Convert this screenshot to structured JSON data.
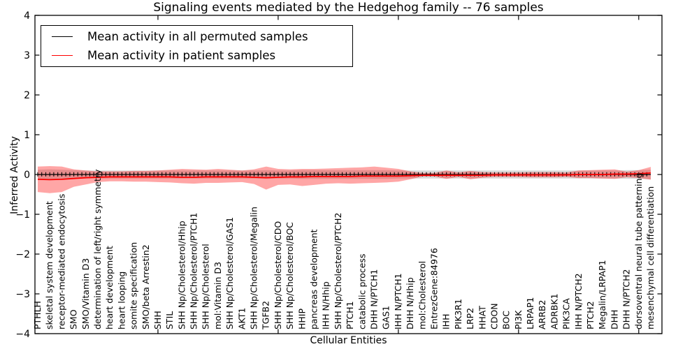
{
  "title": "Signaling events mediated by the Hedgehog family -- 76 samples",
  "axes": {
    "xlabel": "Cellular Entities",
    "ylabel": "Inferred Activity"
  },
  "legend": {
    "items": [
      {
        "label": "Mean activity in all permuted samples",
        "color": "#000000"
      },
      {
        "label": "Mean activity in patient samples",
        "color": "#ff0000"
      }
    ]
  },
  "chart_data": {
    "type": "line",
    "title": "Signaling events mediated by the Hedgehog family -- 76 samples",
    "xlabel": "Cellular Entities",
    "ylabel": "Inferred Activity",
    "ylim": [
      -4,
      4
    ],
    "yticks": [
      4,
      3,
      2,
      1,
      0,
      -1,
      -2,
      -3,
      -4
    ],
    "ytick_labels": [
      "4",
      "3",
      "2",
      "1",
      "0",
      "−1",
      "−2",
      "−3",
      "−4"
    ],
    "x_major_tick_indices": [
      10,
      20,
      30,
      40,
      50
    ],
    "legend_position": "upper left",
    "grid": false,
    "categories": [
      "PTHLH",
      "skeletal system development",
      "receptor-mediated endocytosis",
      "SMO",
      "SMO/Vitamin D3",
      "determination of left/right symmetry",
      "heart development",
      "heart looping",
      "somite specification",
      "SMO/beta Arrestin2",
      "SHH",
      "STIL",
      "SHH Np/Cholesterol/Hhip",
      "SHH Np/Cholesterol/PTCH1",
      "SHH Np/Cholesterol",
      "mol:Vitamin D3",
      "SHH Np/Cholesterol/GAS1",
      "AKT1",
      "SHH Np/Cholesterol/Megalin",
      "TGFB2",
      "SHH Np/Cholesterol/CDO",
      "SHH Np/Cholesterol/BOC",
      "HHIP",
      "pancreas development",
      "IHH N/Hhip",
      "SHH Np/Cholesterol/PTCH2",
      "PTCH1",
      "catabolic process",
      "DHH N/PTCH1",
      "GAS1",
      "IHH N/PTCH1",
      "DHH N/Hhip",
      "mol:Cholesterol",
      "EntrezGene:84976",
      "IHH",
      "PIK3R1",
      "LRP2",
      "HHAT",
      "CDON",
      "BOC",
      "PI3K",
      "LRPAP1",
      "ARRB2",
      "ADRBK1",
      "PIK3CA",
      "IHH N/PTCH2",
      "PTCH2",
      "Megalin/LRPAP1",
      "DHH",
      "DHH N/PTCH2",
      "dorsoventral neural tube patterning",
      "mesenchymal cell differentiation"
    ],
    "series": [
      {
        "name": "Mean activity in all permuted samples",
        "color": "#000000",
        "values": [
          0,
          0,
          0,
          0,
          0,
          0,
          0,
          0,
          0,
          0,
          0,
          0,
          0,
          0,
          0,
          0,
          0,
          0,
          0,
          0,
          0,
          0,
          0,
          0,
          0,
          0,
          0,
          0,
          0,
          0,
          0,
          0,
          0,
          0,
          0,
          0,
          0,
          0,
          0,
          0,
          0,
          0,
          0,
          0,
          0,
          0,
          0,
          0,
          0,
          0,
          0,
          0
        ]
      },
      {
        "name": "Mean activity in patient samples",
        "color": "#ff0000",
        "values": [
          -0.12,
          -0.13,
          -0.12,
          -0.1,
          -0.08,
          -0.07,
          -0.06,
          -0.06,
          -0.06,
          -0.06,
          -0.06,
          -0.06,
          -0.07,
          -0.07,
          -0.06,
          -0.06,
          -0.06,
          -0.06,
          -0.07,
          -0.08,
          -0.07,
          -0.06,
          -0.06,
          -0.05,
          -0.05,
          -0.05,
          -0.05,
          -0.04,
          -0.04,
          -0.04,
          -0.04,
          -0.03,
          -0.02,
          -0.02,
          -0.02,
          -0.02,
          -0.02,
          -0.02,
          -0.01,
          -0.01,
          -0.01,
          -0.01,
          -0.01,
          -0.01,
          -0.01,
          0.0,
          0.0,
          0.0,
          0.01,
          0.01,
          0.02,
          0.04
        ]
      }
    ],
    "bands": [
      {
        "name": "permuted-samples-std-band",
        "color": "#808080",
        "opacity": 0.3,
        "upper": [
          0.12,
          0.13,
          0.12,
          0.11,
          0.1,
          0.1,
          0.1,
          0.1,
          0.1,
          0.1,
          0.1,
          0.1,
          0.1,
          0.1,
          0.1,
          0.1,
          0.1,
          0.1,
          0.1,
          0.11,
          0.1,
          0.1,
          0.11,
          0.11,
          0.11,
          0.11,
          0.11,
          0.11,
          0.11,
          0.11,
          0.1,
          0.1,
          0.1,
          0.1,
          0.1,
          0.1,
          0.1,
          0.1,
          0.1,
          0.1,
          0.1,
          0.1,
          0.1,
          0.1,
          0.1,
          0.1,
          0.1,
          0.1,
          0.1,
          0.11,
          0.11,
          0.12
        ],
        "lower": [
          -0.12,
          -0.13,
          -0.12,
          -0.11,
          -0.1,
          -0.1,
          -0.1,
          -0.1,
          -0.1,
          -0.1,
          -0.1,
          -0.1,
          -0.1,
          -0.1,
          -0.1,
          -0.1,
          -0.1,
          -0.1,
          -0.1,
          -0.11,
          -0.1,
          -0.1,
          -0.11,
          -0.11,
          -0.11,
          -0.11,
          -0.11,
          -0.11,
          -0.11,
          -0.11,
          -0.1,
          -0.1,
          -0.1,
          -0.1,
          -0.1,
          -0.1,
          -0.1,
          -0.1,
          -0.1,
          -0.1,
          -0.1,
          -0.1,
          -0.1,
          -0.1,
          -0.1,
          -0.1,
          -0.1,
          -0.1,
          -0.1,
          -0.11,
          -0.11,
          -0.12
        ]
      },
      {
        "name": "patient-samples-std-band",
        "color": "#ff0000",
        "opacity": 0.35,
        "upper": [
          0.2,
          0.21,
          0.2,
          0.13,
          0.1,
          0.08,
          0.08,
          0.08,
          0.09,
          0.09,
          0.1,
          0.12,
          0.14,
          0.13,
          0.12,
          0.14,
          0.12,
          0.1,
          0.13,
          0.2,
          0.14,
          0.13,
          0.14,
          0.14,
          0.15,
          0.16,
          0.17,
          0.18,
          0.2,
          0.17,
          0.14,
          0.08,
          0.04,
          0.04,
          0.1,
          0.05,
          0.09,
          0.06,
          0.05,
          0.05,
          0.05,
          0.06,
          0.06,
          0.06,
          0.05,
          0.1,
          0.11,
          0.12,
          0.13,
          0.07,
          0.11,
          0.19
        ],
        "lower": [
          -0.44,
          -0.47,
          -0.44,
          -0.31,
          -0.25,
          -0.19,
          -0.17,
          -0.17,
          -0.18,
          -0.18,
          -0.19,
          -0.2,
          -0.22,
          -0.23,
          -0.21,
          -0.21,
          -0.2,
          -0.19,
          -0.24,
          -0.38,
          -0.26,
          -0.25,
          -0.29,
          -0.26,
          -0.23,
          -0.22,
          -0.23,
          -0.22,
          -0.21,
          -0.2,
          -0.18,
          -0.12,
          -0.05,
          -0.05,
          -0.11,
          -0.06,
          -0.12,
          -0.08,
          -0.06,
          -0.06,
          -0.06,
          -0.07,
          -0.07,
          -0.07,
          -0.06,
          -0.09,
          -0.09,
          -0.1,
          -0.11,
          -0.07,
          -0.09,
          -0.13
        ]
      }
    ]
  }
}
